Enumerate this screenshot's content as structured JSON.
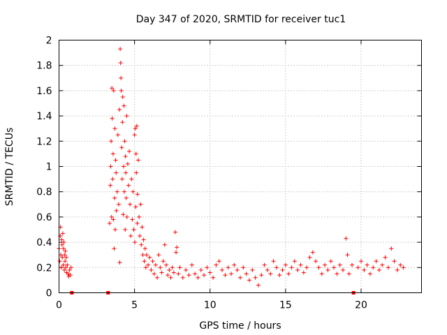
{
  "chart_data": {
    "type": "scatter",
    "title": "Day 347 of 2020, SRMTID for receiver tuc1",
    "xlabel": "GPS time / hours",
    "ylabel": "SRMTID / TECUs",
    "xlim": [
      0,
      24
    ],
    "ylim": [
      0,
      2
    ],
    "xticks": [
      0,
      5,
      10,
      15,
      20
    ],
    "xtick_labels": [
      "0",
      "5",
      "10",
      "15",
      "20"
    ],
    "yticks": [
      0,
      0.2,
      0.4,
      0.6,
      0.8,
      1,
      1.2,
      1.4,
      1.6,
      1.8,
      2
    ],
    "ytick_labels": [
      "0",
      "0.2",
      "0.4",
      "0.6",
      "0.8",
      "1",
      "1.2",
      "1.4",
      "1.6",
      "1.8",
      "2"
    ],
    "grid": true,
    "marker": "+",
    "color": "#ff0000",
    "data_gap_markers_x": [
      0.85,
      3.25,
      19.5
    ],
    "series": [
      {
        "name": "SRMTID",
        "points": [
          [
            0.0,
            0.35
          ],
          [
            0.05,
            0.25
          ],
          [
            0.08,
            0.45
          ],
          [
            0.1,
            0.52
          ],
          [
            0.12,
            0.3
          ],
          [
            0.15,
            0.2
          ],
          [
            0.18,
            0.42
          ],
          [
            0.2,
            0.38
          ],
          [
            0.22,
            0.28
          ],
          [
            0.25,
            0.47
          ],
          [
            0.28,
            0.22
          ],
          [
            0.3,
            0.35
          ],
          [
            0.32,
            0.4
          ],
          [
            0.35,
            0.18
          ],
          [
            0.38,
            0.3
          ],
          [
            0.4,
            0.25
          ],
          [
            0.42,
            0.33
          ],
          [
            0.45,
            0.2
          ],
          [
            0.48,
            0.28
          ],
          [
            0.5,
            0.16
          ],
          [
            0.55,
            0.22
          ],
          [
            0.6,
            0.15
          ],
          [
            0.65,
            0.13
          ],
          [
            0.7,
            0.18
          ],
          [
            0.75,
            0.14
          ],
          [
            0.8,
            0.2
          ],
          [
            3.35,
            0.55
          ],
          [
            3.4,
            0.85
          ],
          [
            3.42,
            1.0
          ],
          [
            3.45,
            1.2
          ],
          [
            3.48,
            0.6
          ],
          [
            3.5,
            1.62
          ],
          [
            3.52,
            1.38
          ],
          [
            3.55,
            0.9
          ],
          [
            3.58,
            1.1
          ],
          [
            3.6,
            0.58
          ],
          [
            3.62,
            1.6
          ],
          [
            3.65,
            0.35
          ],
          [
            3.68,
            0.75
          ],
          [
            3.7,
            1.3
          ],
          [
            3.72,
            0.5
          ],
          [
            3.75,
            1.05
          ],
          [
            3.78,
            0.95
          ],
          [
            3.8,
            0.65
          ],
          [
            3.85,
            0.8
          ],
          [
            3.9,
            1.25
          ],
          [
            3.95,
            0.7
          ],
          [
            4.0,
            1.45
          ],
          [
            4.02,
            0.24
          ],
          [
            4.05,
            1.93
          ],
          [
            4.08,
            1.82
          ],
          [
            4.1,
            1.7
          ],
          [
            4.12,
            1.6
          ],
          [
            4.15,
            1.15
          ],
          [
            4.18,
            0.9
          ],
          [
            4.2,
            1.35
          ],
          [
            4.22,
            1.55
          ],
          [
            4.25,
            0.62
          ],
          [
            4.28,
            1.0
          ],
          [
            4.3,
            1.48
          ],
          [
            4.32,
            0.8
          ],
          [
            4.35,
            1.2
          ],
          [
            4.38,
            0.5
          ],
          [
            4.4,
            1.08
          ],
          [
            4.42,
            0.95
          ],
          [
            4.45,
            0.75
          ],
          [
            4.48,
            1.4
          ],
          [
            4.5,
            0.6
          ],
          [
            4.55,
            1.02
          ],
          [
            4.6,
            0.85
          ],
          [
            4.65,
            1.12
          ],
          [
            4.7,
            0.7
          ],
          [
            4.75,
            0.45
          ],
          [
            4.8,
            0.9
          ],
          [
            4.85,
            0.58
          ],
          [
            4.9,
            0.8
          ],
          [
            4.95,
            0.5
          ],
          [
            5.0,
            1.25
          ],
          [
            5.02,
            0.4
          ],
          [
            5.05,
            1.3
          ],
          [
            5.08,
            0.68
          ],
          [
            5.1,
            1.1
          ],
          [
            5.12,
            0.95
          ],
          [
            5.15,
            1.32
          ],
          [
            5.18,
            0.55
          ],
          [
            5.2,
            0.78
          ],
          [
            5.25,
            1.05
          ],
          [
            5.3,
            0.6
          ],
          [
            5.35,
            0.45
          ],
          [
            5.4,
            0.7
          ],
          [
            5.45,
            0.38
          ],
          [
            5.5,
            0.52
          ],
          [
            5.55,
            0.3
          ],
          [
            5.6,
            0.42
          ],
          [
            5.65,
            0.25
          ],
          [
            5.7,
            0.35
          ],
          [
            5.75,
            0.2
          ],
          [
            5.8,
            0.3
          ],
          [
            5.9,
            0.22
          ],
          [
            6.0,
            0.28
          ],
          [
            6.1,
            0.18
          ],
          [
            6.2,
            0.25
          ],
          [
            6.3,
            0.15
          ],
          [
            6.4,
            0.22
          ],
          [
            6.5,
            0.12
          ],
          [
            6.6,
            0.3
          ],
          [
            6.7,
            0.2
          ],
          [
            6.8,
            0.16
          ],
          [
            6.9,
            0.25
          ],
          [
            7.0,
            0.38
          ],
          [
            7.1,
            0.22
          ],
          [
            7.2,
            0.14
          ],
          [
            7.3,
            0.18
          ],
          [
            7.4,
            0.12
          ],
          [
            7.5,
            0.2
          ],
          [
            7.6,
            0.16
          ],
          [
            7.7,
            0.48
          ],
          [
            7.75,
            0.32
          ],
          [
            7.8,
            0.36
          ],
          [
            7.9,
            0.15
          ],
          [
            8.0,
            0.2
          ],
          [
            8.2,
            0.12
          ],
          [
            8.4,
            0.18
          ],
          [
            8.6,
            0.14
          ],
          [
            8.8,
            0.22
          ],
          [
            9.0,
            0.15
          ],
          [
            9.2,
            0.12
          ],
          [
            9.4,
            0.18
          ],
          [
            9.6,
            0.14
          ],
          [
            9.8,
            0.2
          ],
          [
            10.0,
            0.16
          ],
          [
            10.2,
            0.12
          ],
          [
            10.4,
            0.22
          ],
          [
            10.6,
            0.25
          ],
          [
            10.8,
            0.18
          ],
          [
            11.0,
            0.14
          ],
          [
            11.2,
            0.2
          ],
          [
            11.4,
            0.15
          ],
          [
            11.6,
            0.22
          ],
          [
            11.8,
            0.18
          ],
          [
            12.0,
            0.12
          ],
          [
            12.2,
            0.2
          ],
          [
            12.4,
            0.15
          ],
          [
            12.6,
            0.1
          ],
          [
            12.8,
            0.18
          ],
          [
            13.0,
            0.12
          ],
          [
            13.2,
            0.06
          ],
          [
            13.4,
            0.14
          ],
          [
            13.6,
            0.22
          ],
          [
            13.8,
            0.18
          ],
          [
            14.0,
            0.15
          ],
          [
            14.2,
            0.25
          ],
          [
            14.4,
            0.2
          ],
          [
            14.6,
            0.14
          ],
          [
            14.8,
            0.18
          ],
          [
            15.0,
            0.22
          ],
          [
            15.2,
            0.15
          ],
          [
            15.4,
            0.2
          ],
          [
            15.6,
            0.25
          ],
          [
            15.8,
            0.18
          ],
          [
            16.0,
            0.22
          ],
          [
            16.2,
            0.16
          ],
          [
            16.4,
            0.2
          ],
          [
            16.6,
            0.28
          ],
          [
            16.8,
            0.32
          ],
          [
            17.0,
            0.25
          ],
          [
            17.2,
            0.2
          ],
          [
            17.4,
            0.15
          ],
          [
            17.6,
            0.22
          ],
          [
            17.8,
            0.18
          ],
          [
            18.0,
            0.25
          ],
          [
            18.2,
            0.2
          ],
          [
            18.4,
            0.15
          ],
          [
            18.6,
            0.22
          ],
          [
            18.8,
            0.18
          ],
          [
            19.0,
            0.43
          ],
          [
            19.1,
            0.3
          ],
          [
            19.2,
            0.15
          ],
          [
            19.4,
            0.22
          ],
          [
            19.8,
            0.2
          ],
          [
            20.0,
            0.25
          ],
          [
            20.2,
            0.18
          ],
          [
            20.4,
            0.22
          ],
          [
            20.6,
            0.15
          ],
          [
            20.8,
            0.2
          ],
          [
            21.0,
            0.25
          ],
          [
            21.2,
            0.18
          ],
          [
            21.4,
            0.22
          ],
          [
            21.6,
            0.28
          ],
          [
            21.8,
            0.2
          ],
          [
            22.0,
            0.35
          ],
          [
            22.2,
            0.25
          ],
          [
            22.4,
            0.18
          ],
          [
            22.6,
            0.22
          ],
          [
            22.8,
            0.2
          ]
        ]
      }
    ]
  }
}
